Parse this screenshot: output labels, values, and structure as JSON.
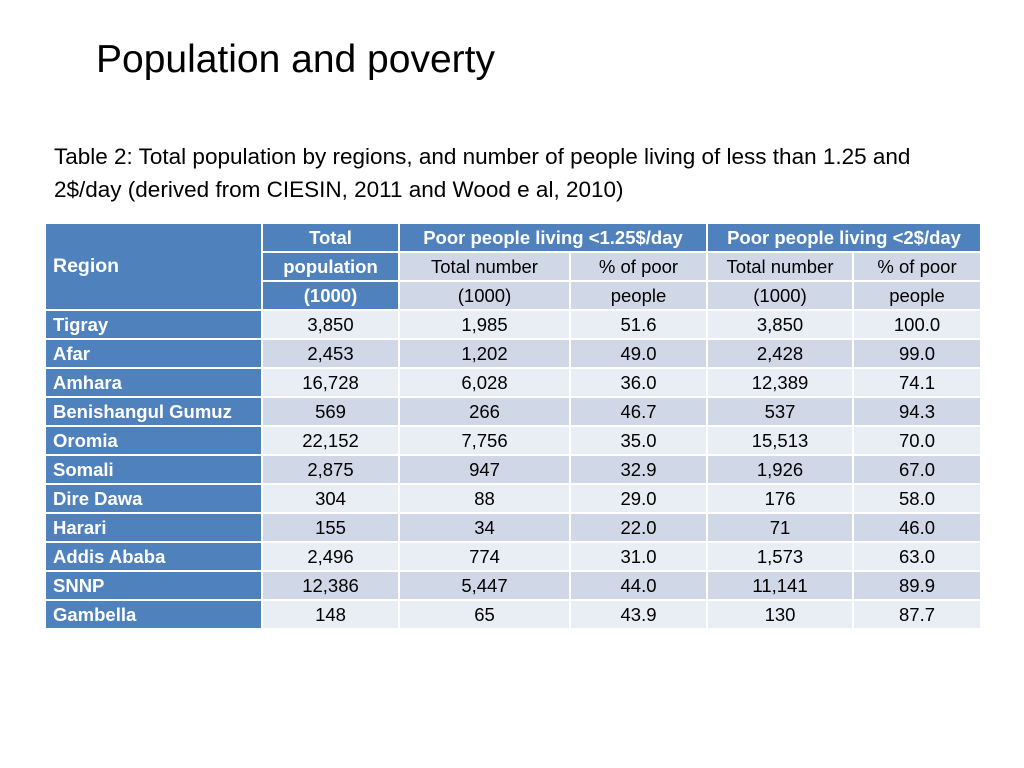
{
  "title": "Population and poverty",
  "caption": "Table 2: Total population by regions, and number of people living of less than 1.25 and 2$/day (derived from CIESIN, 2011 and Wood e al, 2010)",
  "table": {
    "header": {
      "region": "Region",
      "total_population": [
        "Total",
        "population",
        "(1000)"
      ],
      "group_125": "Poor people living <1.25$/day",
      "group_2": "Poor people living <2$/day",
      "total_number": [
        "Total number",
        "(1000)"
      ],
      "pct_poor": [
        "% of poor",
        "people"
      ]
    },
    "rows": [
      {
        "region": "Tigray",
        "total": "3,850",
        "n125": "1,985",
        "p125": "51.6",
        "n2": "3,850",
        "p2": "100.0"
      },
      {
        "region": "Afar",
        "total": "2,453",
        "n125": "1,202",
        "p125": "49.0",
        "n2": "2,428",
        "p2": "99.0"
      },
      {
        "region": "Amhara",
        "total": "16,728",
        "n125": "6,028",
        "p125": "36.0",
        "n2": "12,389",
        "p2": "74.1"
      },
      {
        "region": "Benishangul Gumuz",
        "total": "569",
        "n125": "266",
        "p125": "46.7",
        "n2": "537",
        "p2": "94.3"
      },
      {
        "region": "Oromia",
        "total": "22,152",
        "n125": "7,756",
        "p125": "35.0",
        "n2": "15,513",
        "p2": "70.0"
      },
      {
        "region": "Somali",
        "total": "2,875",
        "n125": "947",
        "p125": "32.9",
        "n2": "1,926",
        "p2": "67.0"
      },
      {
        "region": "Dire Dawa",
        "total": "304",
        "n125": "88",
        "p125": "29.0",
        "n2": "176",
        "p2": "58.0"
      },
      {
        "region": "Harari",
        "total": "155",
        "n125": "34",
        "p125": "22.0",
        "n2": "71",
        "p2": "46.0"
      },
      {
        "region": "Addis Ababa",
        "total": "2,496",
        "n125": "774",
        "p125": "31.0",
        "n2": "1,573",
        "p2": "63.0"
      },
      {
        "region": "SNNP",
        "total": "12,386",
        "n125": "5,447",
        "p125": "44.0",
        "n2": "11,141",
        "p2": "89.9"
      },
      {
        "region": "Gambella",
        "total": "148",
        "n125": "65",
        "p125": "43.9",
        "n2": "130",
        "p2": "87.7"
      }
    ]
  },
  "colors": {
    "header_blue": "#4f81bd",
    "row_light": "#e9edf4",
    "row_dark": "#d0d8e8"
  }
}
